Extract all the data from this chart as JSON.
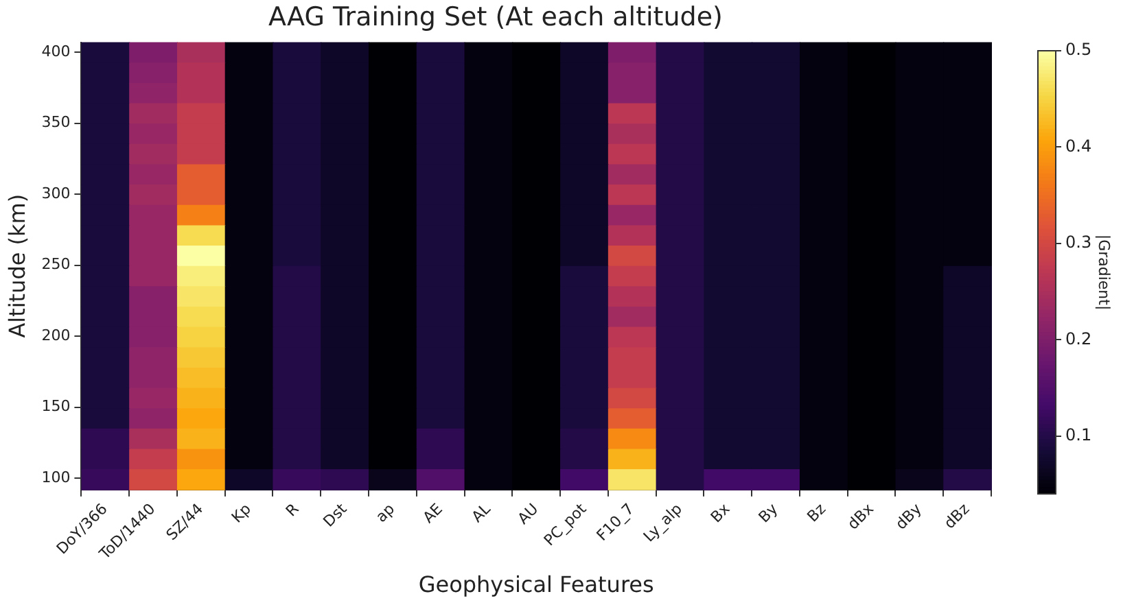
{
  "chart_data": {
    "type": "heatmap",
    "title": "AAG Training Set (At each altitude)",
    "xlabel": "Geophysical Features",
    "ylabel": "Altitude (km)",
    "clabel": "|Gradient|",
    "categories": [
      "DoY/366",
      "ToD/1440",
      "SZ/44",
      "Kp",
      "R",
      "Dst",
      "ap",
      "AE",
      "AL",
      "AU",
      "PC_pot",
      "F10_7",
      "Ly_alp",
      "Bx",
      "By",
      "Bz",
      "dBx",
      "dBy",
      "dBz"
    ],
    "ylim": [
      92,
      407
    ],
    "yticks": [
      100,
      150,
      200,
      250,
      300,
      350,
      400
    ],
    "clim": [
      0.04,
      0.5
    ],
    "cticks": [
      0.1,
      0.2,
      0.3,
      0.4,
      0.5
    ],
    "cells": [
      [
        0.09,
        0.2,
        0.25,
        0.05,
        0.09,
        0.07,
        0.04,
        0.09,
        0.05,
        0.04,
        0.07,
        0.2,
        0.1,
        0.08,
        0.08,
        0.05,
        0.04,
        0.05,
        0.05
      ],
      [
        0.09,
        0.21,
        0.26,
        0.05,
        0.09,
        0.07,
        0.04,
        0.09,
        0.05,
        0.04,
        0.07,
        0.21,
        0.1,
        0.08,
        0.08,
        0.05,
        0.04,
        0.05,
        0.05
      ],
      [
        0.09,
        0.22,
        0.26,
        0.05,
        0.09,
        0.07,
        0.04,
        0.09,
        0.05,
        0.04,
        0.07,
        0.21,
        0.1,
        0.08,
        0.08,
        0.05,
        0.04,
        0.05,
        0.05
      ],
      [
        0.09,
        0.24,
        0.28,
        0.05,
        0.09,
        0.07,
        0.04,
        0.09,
        0.05,
        0.04,
        0.07,
        0.27,
        0.1,
        0.08,
        0.08,
        0.05,
        0.04,
        0.05,
        0.05
      ],
      [
        0.09,
        0.23,
        0.28,
        0.05,
        0.09,
        0.07,
        0.04,
        0.09,
        0.05,
        0.04,
        0.07,
        0.25,
        0.1,
        0.08,
        0.08,
        0.05,
        0.04,
        0.05,
        0.05
      ],
      [
        0.09,
        0.24,
        0.28,
        0.05,
        0.09,
        0.07,
        0.04,
        0.09,
        0.05,
        0.04,
        0.07,
        0.27,
        0.1,
        0.08,
        0.08,
        0.05,
        0.04,
        0.05,
        0.05
      ],
      [
        0.09,
        0.23,
        0.33,
        0.05,
        0.09,
        0.07,
        0.04,
        0.09,
        0.05,
        0.04,
        0.07,
        0.24,
        0.1,
        0.08,
        0.08,
        0.05,
        0.04,
        0.05,
        0.05
      ],
      [
        0.09,
        0.24,
        0.33,
        0.05,
        0.09,
        0.07,
        0.04,
        0.09,
        0.05,
        0.04,
        0.07,
        0.27,
        0.1,
        0.08,
        0.08,
        0.05,
        0.04,
        0.05,
        0.05
      ],
      [
        0.09,
        0.23,
        0.37,
        0.05,
        0.09,
        0.07,
        0.04,
        0.09,
        0.05,
        0.04,
        0.07,
        0.23,
        0.1,
        0.08,
        0.08,
        0.05,
        0.04,
        0.05,
        0.05
      ],
      [
        0.09,
        0.23,
        0.46,
        0.05,
        0.09,
        0.07,
        0.04,
        0.09,
        0.05,
        0.04,
        0.07,
        0.26,
        0.1,
        0.08,
        0.08,
        0.05,
        0.04,
        0.05,
        0.05
      ],
      [
        0.09,
        0.23,
        0.5,
        0.05,
        0.09,
        0.07,
        0.04,
        0.09,
        0.05,
        0.04,
        0.07,
        0.3,
        0.1,
        0.08,
        0.08,
        0.05,
        0.04,
        0.05,
        0.05
      ],
      [
        0.09,
        0.23,
        0.48,
        0.05,
        0.1,
        0.07,
        0.04,
        0.09,
        0.05,
        0.04,
        0.09,
        0.28,
        0.1,
        0.08,
        0.08,
        0.05,
        0.04,
        0.05,
        0.07
      ],
      [
        0.09,
        0.21,
        0.47,
        0.05,
        0.1,
        0.07,
        0.04,
        0.09,
        0.05,
        0.04,
        0.09,
        0.26,
        0.1,
        0.08,
        0.08,
        0.05,
        0.04,
        0.05,
        0.07
      ],
      [
        0.09,
        0.21,
        0.46,
        0.05,
        0.1,
        0.07,
        0.04,
        0.09,
        0.05,
        0.04,
        0.09,
        0.24,
        0.1,
        0.08,
        0.08,
        0.05,
        0.04,
        0.05,
        0.07
      ],
      [
        0.09,
        0.21,
        0.45,
        0.05,
        0.1,
        0.07,
        0.04,
        0.09,
        0.05,
        0.04,
        0.09,
        0.27,
        0.1,
        0.08,
        0.08,
        0.05,
        0.04,
        0.05,
        0.07
      ],
      [
        0.09,
        0.22,
        0.44,
        0.05,
        0.1,
        0.07,
        0.04,
        0.09,
        0.05,
        0.04,
        0.09,
        0.28,
        0.1,
        0.08,
        0.08,
        0.05,
        0.04,
        0.05,
        0.07
      ],
      [
        0.09,
        0.22,
        0.43,
        0.05,
        0.1,
        0.07,
        0.04,
        0.09,
        0.05,
        0.04,
        0.09,
        0.28,
        0.1,
        0.08,
        0.08,
        0.05,
        0.04,
        0.05,
        0.07
      ],
      [
        0.09,
        0.23,
        0.42,
        0.05,
        0.1,
        0.07,
        0.04,
        0.09,
        0.05,
        0.04,
        0.09,
        0.3,
        0.1,
        0.08,
        0.08,
        0.05,
        0.04,
        0.05,
        0.07
      ],
      [
        0.09,
        0.22,
        0.41,
        0.05,
        0.1,
        0.07,
        0.04,
        0.09,
        0.05,
        0.04,
        0.09,
        0.33,
        0.1,
        0.08,
        0.08,
        0.05,
        0.04,
        0.05,
        0.07
      ],
      [
        0.11,
        0.25,
        0.42,
        0.05,
        0.1,
        0.07,
        0.04,
        0.11,
        0.05,
        0.04,
        0.1,
        0.38,
        0.1,
        0.08,
        0.08,
        0.05,
        0.04,
        0.05,
        0.07
      ],
      [
        0.11,
        0.28,
        0.39,
        0.05,
        0.1,
        0.07,
        0.04,
        0.11,
        0.05,
        0.04,
        0.1,
        0.42,
        0.1,
        0.08,
        0.08,
        0.05,
        0.04,
        0.05,
        0.07
      ],
      [
        0.12,
        0.3,
        0.41,
        0.07,
        0.12,
        0.11,
        0.06,
        0.15,
        0.05,
        0.04,
        0.13,
        0.47,
        0.1,
        0.13,
        0.13,
        0.05,
        0.04,
        0.06,
        0.1
      ]
    ]
  }
}
